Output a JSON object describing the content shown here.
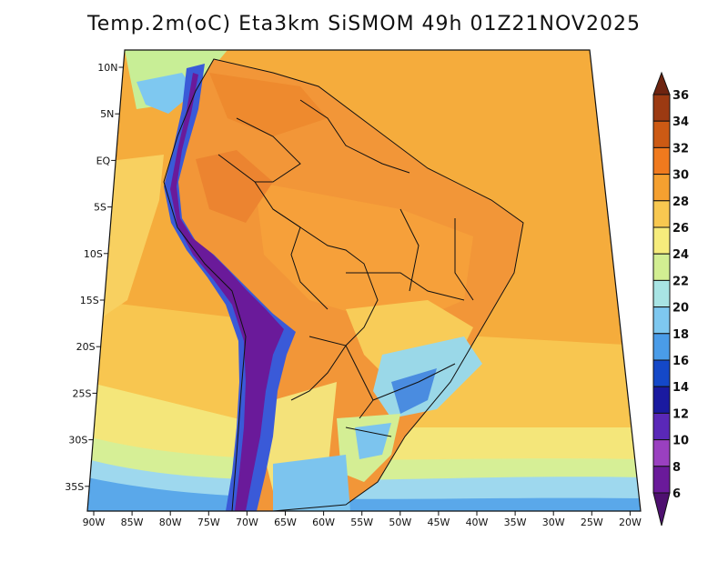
{
  "title": "Temp.2m(oC) Eta3km SiSMOM 49h 01Z21NOV2025",
  "map": {
    "lat_labels": [
      "10N",
      "5N",
      "EQ",
      "5S",
      "10S",
      "15S",
      "20S",
      "25S",
      "30S",
      "35S"
    ],
    "lon_labels": [
      "90W",
      "85W",
      "80W",
      "75W",
      "70W",
      "65W",
      "60W",
      "55W",
      "50W",
      "45W",
      "40W",
      "35W",
      "30W",
      "25W",
      "20W"
    ]
  },
  "colorbar": {
    "labels": [
      "36",
      "34",
      "32",
      "30",
      "28",
      "26",
      "24",
      "22",
      "20",
      "18",
      "16",
      "14",
      "12",
      "10",
      "8",
      "6"
    ],
    "colors": [
      "#6e2410",
      "#9c3a12",
      "#cc5a14",
      "#f07a1e",
      "#f5a030",
      "#f8c850",
      "#f6ec7c",
      "#d2ee92",
      "#a8e4e4",
      "#7ec8f0",
      "#4a9ce8",
      "#1448c8",
      "#1a1aa0",
      "#5a28b8",
      "#9a40c0",
      "#6a1a9a",
      "#4e1070"
    ]
  },
  "colors": {
    "ocean_warm": "#f5a838",
    "ocean_mid": "#f8cc58",
    "ocean_cool": "#f4e878",
    "land_hot": "#f08a30",
    "andes_cold": "#6a1a9a",
    "andes_blue": "#3a5ad8",
    "south_cool": "#8ed0f0"
  }
}
